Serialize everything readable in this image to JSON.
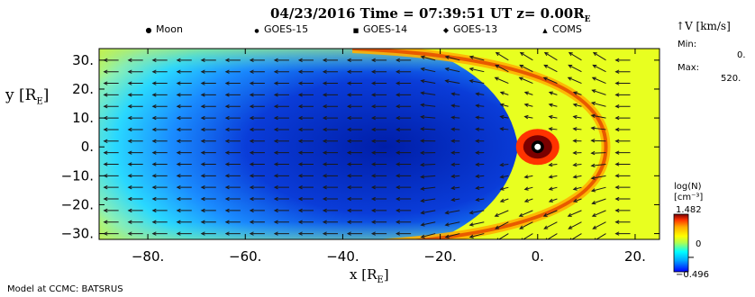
{
  "chart_data": {
    "type": "heatmap",
    "title": "04/23/2016 Time = 07:39:51 UT z= 0.00R",
    "title_subscript": "E",
    "legend": [
      {
        "symbol": "●",
        "label": "Moon"
      },
      {
        "symbol": "●",
        "label": "GOES-15"
      },
      {
        "symbol": "■",
        "label": "GOES-14"
      },
      {
        "symbol": "◆",
        "label": "GOES-13"
      },
      {
        "symbol": "▲",
        "label": "COMS"
      }
    ],
    "xlabel": "x [R",
    "xlabel_subscript": "E",
    "xlabel_close": "]",
    "ylabel": "y [R",
    "ylabel_subscript": "E",
    "ylabel_close": "]",
    "xlim": [
      -90,
      25
    ],
    "ylim": [
      -32,
      34
    ],
    "xticks": [
      -80,
      -60,
      -40,
      -20,
      0,
      20
    ],
    "xtick_labels": [
      "−80.",
      "−60.",
      "−40.",
      "−20.",
      "0.",
      "20."
    ],
    "yticks": [
      30,
      20,
      10,
      0,
      -10,
      -20,
      -30
    ],
    "ytick_labels": [
      "30.",
      "20.",
      "10.",
      "0.",
      "−10.",
      "−20.",
      "−30."
    ],
    "vector_key": {
      "label": "V [km/s]",
      "min_label": "Min:",
      "min_value": "0.",
      "max_label": "Max:",
      "max_value": "520."
    },
    "colorbar": {
      "title_line1": "log(N)",
      "title_line2": "[cm⁻³]",
      "max": "1.482",
      "mid": "0",
      "min": "−0.496",
      "max_value": 1.482,
      "min_value": -0.496
    },
    "grid": false,
    "colormap_stops": [
      "#0000ff",
      "#00aaff",
      "#00ffff",
      "#aaff55",
      "#ffff00",
      "#ffaa00",
      "#ff3300",
      "#7a0000"
    ]
  },
  "footer": {
    "source": "Model at CCMC: BATSRUS"
  }
}
